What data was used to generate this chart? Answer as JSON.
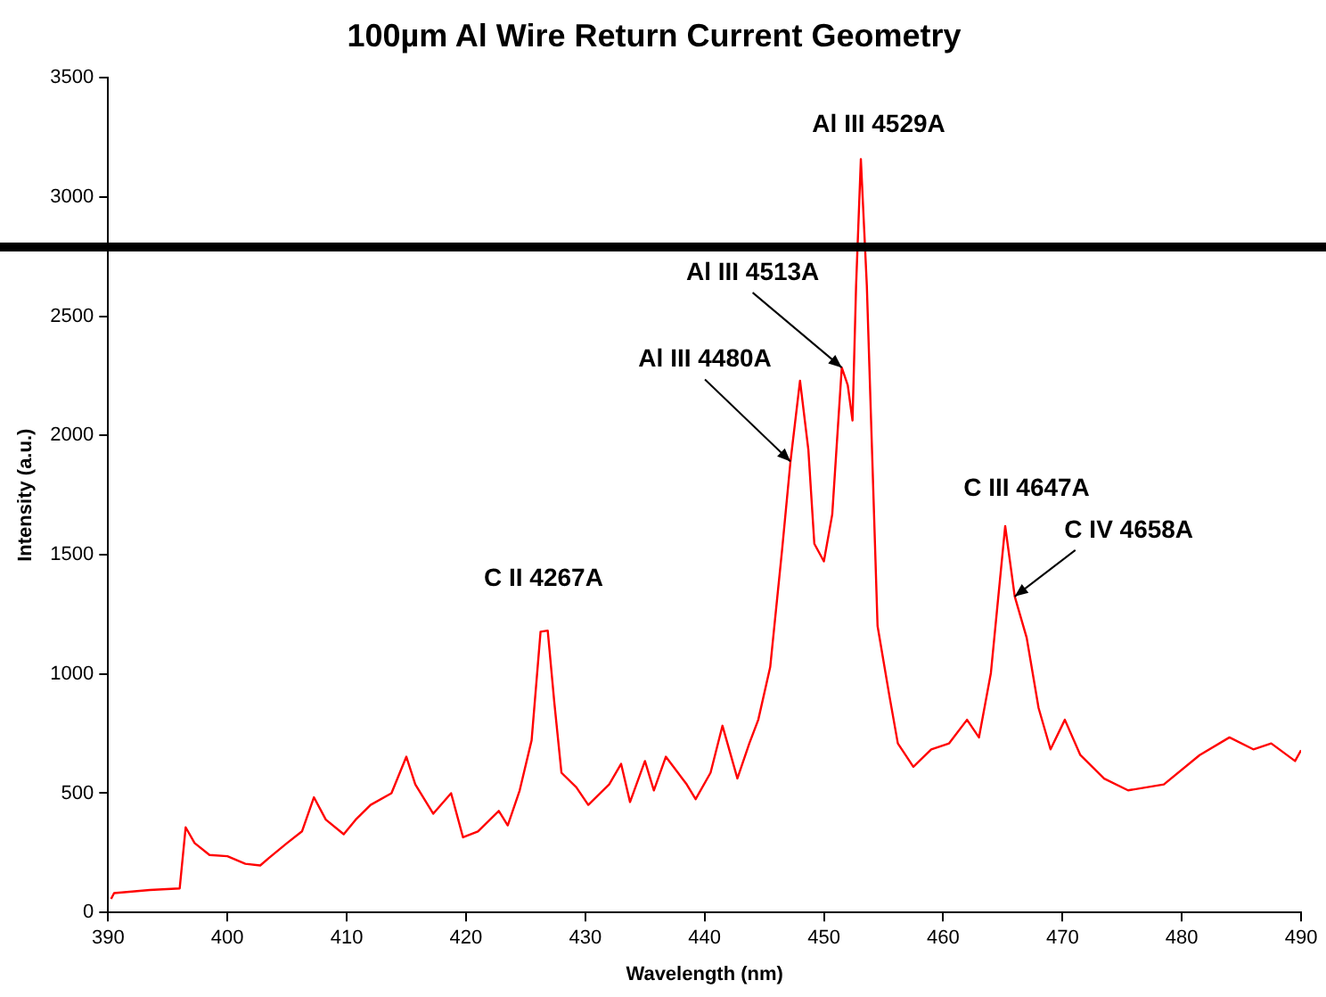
{
  "chart_data": {
    "type": "line",
    "title": "100µm Al Wire Return Current Geometry",
    "xlabel": "Wavelength (nm)",
    "ylabel": "Intensity (a.u.)",
    "xlim": [
      390,
      490
    ],
    "xticks": [
      390,
      400,
      410,
      420,
      430,
      440,
      450,
      460,
      470,
      480,
      490
    ],
    "ylim": [
      0,
      3500
    ],
    "yticks": [
      0,
      500,
      1000,
      1500,
      2000,
      2500,
      3000,
      3500
    ],
    "grid": false,
    "legend": false,
    "marker": "none",
    "line_style": "solid",
    "ref_lines": [
      {
        "axis": "y",
        "value": 2790,
        "color": "#000000"
      }
    ],
    "annotations": [
      {
        "text": "C II 4267A",
        "x": 426.5,
        "y": 1180
      },
      {
        "text": "Al III 4480A",
        "x": 447.2,
        "y": 1891
      },
      {
        "text": "Al III 4513A",
        "x": 451.5,
        "y": 2285
      },
      {
        "text": "Al III 4529A",
        "x": 453.1,
        "y": 3159
      },
      {
        "text": "C III 4647A",
        "x": 465.2,
        "y": 1620
      },
      {
        "text": "C IV 4658A",
        "x": 466,
        "y": 1325
      }
    ],
    "series": [
      {
        "color": "#ff0000",
        "x": [
          390.25,
          390.5,
          393.5,
          396,
          396.5,
          397.25,
          398.5,
          400,
          401.5,
          402.75,
          403.5,
          405,
          406.25,
          407.25,
          408.25,
          409.75,
          410.75,
          412,
          413.75,
          415,
          415.75,
          417.25,
          418.75,
          419.75,
          421,
          422.75,
          423.5,
          424.5,
          425.5,
          426.25,
          426.85,
          427.4,
          428,
          429.25,
          430.25,
          432,
          433,
          433.75,
          435,
          435.75,
          436.75,
          438.5,
          439.25,
          440.5,
          441.5,
          442.75,
          443.75,
          444.5,
          445.5,
          446.5,
          447.2,
          448,
          448.7,
          449.2,
          450,
          450.7,
          451.5,
          452,
          452.4,
          452.7,
          453.1,
          453.6,
          454.5,
          455.5,
          456.2,
          457.5,
          459,
          460.5,
          462,
          463,
          464,
          465.2,
          466,
          467,
          468,
          469,
          470.2,
          471.5,
          473.5,
          475.5,
          478.5,
          481.5,
          484,
          486,
          487.5,
          489.5,
          490
        ],
        "values": [
          57,
          81,
          94,
          101,
          357,
          291,
          241,
          236,
          204,
          197,
          229,
          291,
          340,
          483,
          389,
          328,
          389,
          451,
          500,
          653,
          537,
          414,
          500,
          315,
          340,
          426,
          365,
          512,
          722,
          1177,
          1182,
          882,
          586,
          525,
          451,
          537,
          623,
          463,
          635,
          512,
          653,
          537,
          475,
          586,
          783,
          562,
          709,
          808,
          1029,
          1522,
          1891,
          2230,
          1940,
          1546,
          1472,
          1669,
          2285,
          2211,
          2063,
          2629,
          3159,
          2629,
          1201,
          906,
          709,
          611,
          684,
          709,
          808,
          734,
          1004,
          1620,
          1325,
          1152,
          857,
          684,
          808,
          660,
          561,
          512,
          537,
          660,
          734,
          684,
          709,
          635,
          680
        ]
      }
    ]
  }
}
